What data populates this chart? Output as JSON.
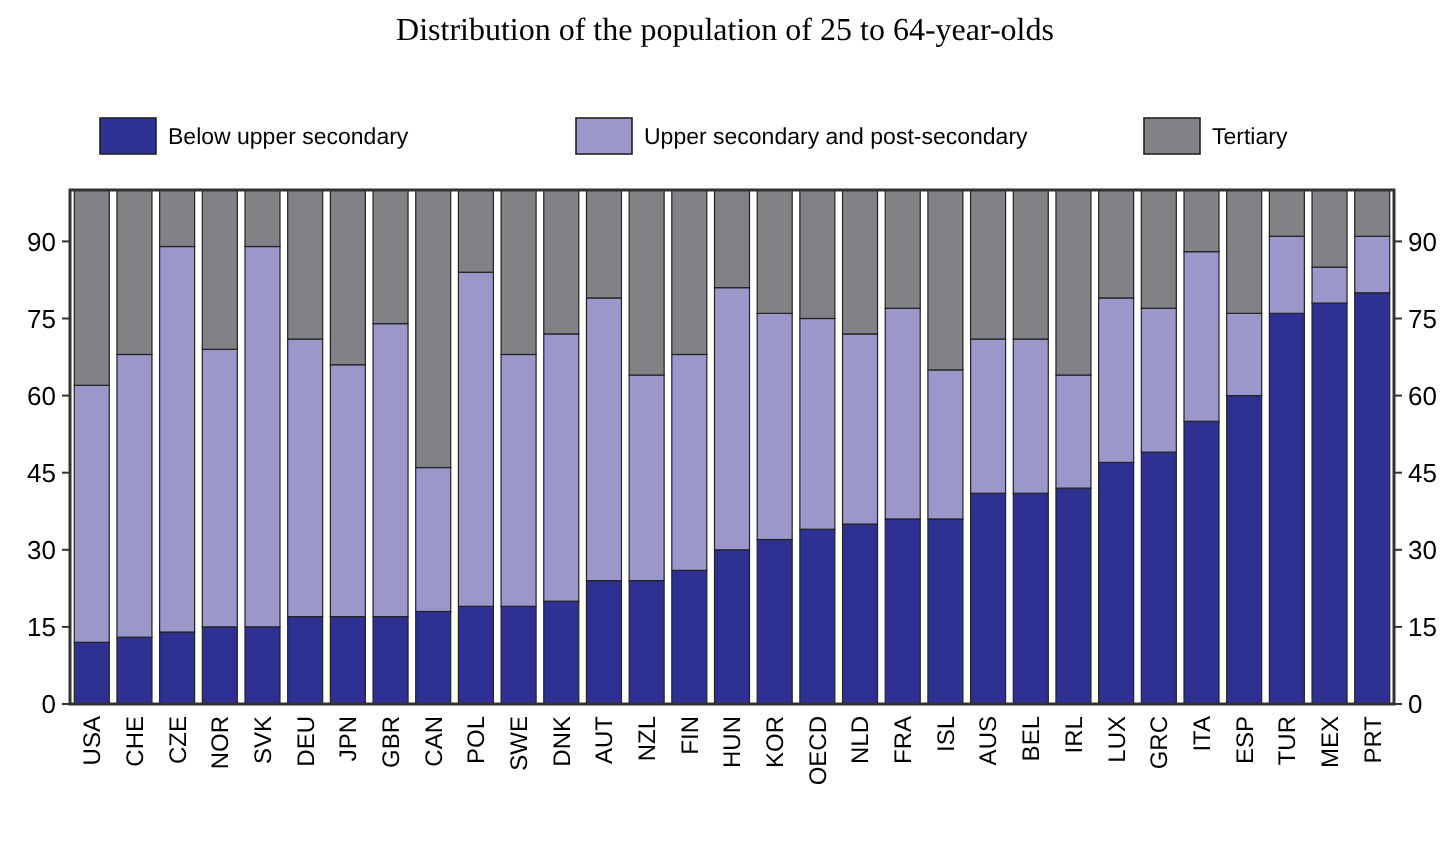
{
  "chart_data": {
    "type": "bar",
    "title": "Distribution of the population of 25 to 64-year-olds",
    "stacked": true,
    "legend": "top",
    "grid": false,
    "categories": [
      "USA",
      "CHE",
      "CZE",
      "NOR",
      "SVK",
      "DEU",
      "JPN",
      "GBR",
      "CAN",
      "POL",
      "SWE",
      "DNK",
      "AUT",
      "NZL",
      "FIN",
      "HUN",
      "KOR",
      "OECD",
      "NLD",
      "FRA",
      "ISL",
      "AUS",
      "BEL",
      "IRL",
      "LUX",
      "GRC",
      "ITA",
      "ESP",
      "TUR",
      "MEX",
      "PRT"
    ],
    "ylim": [
      0,
      100
    ],
    "yticks": [
      0,
      15,
      30,
      45,
      60,
      75,
      90
    ],
    "y2lim": [
      0,
      100
    ],
    "y2ticks": [
      0,
      15,
      30,
      45,
      60,
      75,
      90
    ],
    "series": [
      {
        "name": "Below upper secondary",
        "color": "#2e3192",
        "values": [
          12,
          13,
          14,
          15,
          15,
          17,
          17,
          17,
          18,
          19,
          19,
          20,
          24,
          24,
          26,
          30,
          32,
          34,
          35,
          36,
          36,
          41,
          41,
          42,
          47,
          49,
          55,
          60,
          76,
          78,
          80
        ]
      },
      {
        "name": "Upper secondary and post-secondary",
        "color": "#9b97cb",
        "values": [
          50,
          55,
          75,
          54,
          74,
          54,
          49,
          57,
          28,
          65,
          49,
          52,
          55,
          40,
          42,
          51,
          44,
          41,
          37,
          41,
          29,
          30,
          30,
          22,
          32,
          28,
          33,
          16,
          15,
          7,
          11
        ]
      },
      {
        "name": "Tertiary",
        "color": "#808285",
        "values": [
          38,
          32,
          11,
          31,
          11,
          29,
          34,
          26,
          54,
          16,
          32,
          28,
          21,
          36,
          32,
          19,
          24,
          25,
          28,
          23,
          35,
          29,
          29,
          36,
          21,
          23,
          12,
          24,
          9,
          15,
          9
        ]
      }
    ]
  }
}
